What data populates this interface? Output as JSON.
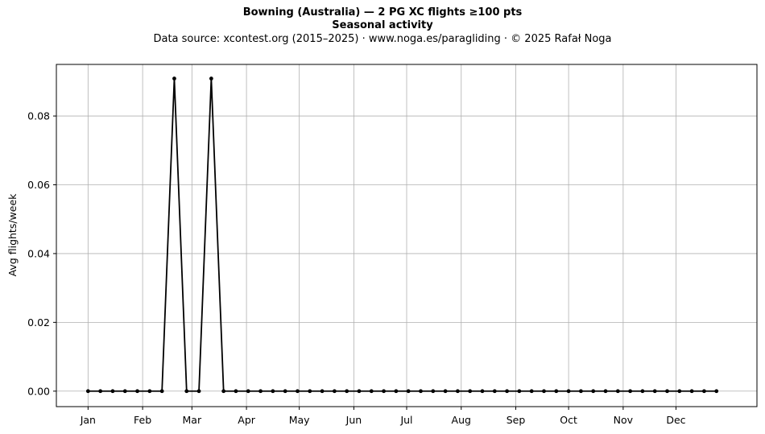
{
  "chart_data": {
    "type": "line",
    "title": "Bowning (Australia)  —  2 PG XC flights ≥100 pts",
    "subtitle": "Seasonal activity",
    "source": "Data source: xcontest.org (2015–2025)  ·  www.noga.es/paragliding  ·  © 2025 Rafał Noga",
    "xlabel": "",
    "ylabel": "Avg flights/week",
    "week_values": [
      0,
      0,
      0,
      0,
      0,
      0,
      0,
      0.0909,
      0,
      0,
      0.0909,
      0,
      0,
      0,
      0,
      0,
      0,
      0,
      0,
      0,
      0,
      0,
      0,
      0,
      0,
      0,
      0,
      0,
      0,
      0,
      0,
      0,
      0,
      0,
      0,
      0,
      0,
      0,
      0,
      0,
      0,
      0,
      0,
      0,
      0,
      0,
      0,
      0,
      0,
      0,
      0,
      0
    ],
    "month_labels": [
      "Jan",
      "Feb",
      "Mar",
      "Apr",
      "May",
      "Jun",
      "Jul",
      "Aug",
      "Sep",
      "Oct",
      "Nov",
      "Dec"
    ],
    "month_start_days": [
      0,
      31,
      59,
      90,
      120,
      151,
      181,
      212,
      243,
      273,
      304,
      334
    ],
    "y_ticks": [
      0.0,
      0.02,
      0.04,
      0.06,
      0.08
    ],
    "ylim": [
      -0.0045,
      0.095
    ],
    "grid": true,
    "line_color": "#000000",
    "grid_color": "#b0b0b0"
  }
}
